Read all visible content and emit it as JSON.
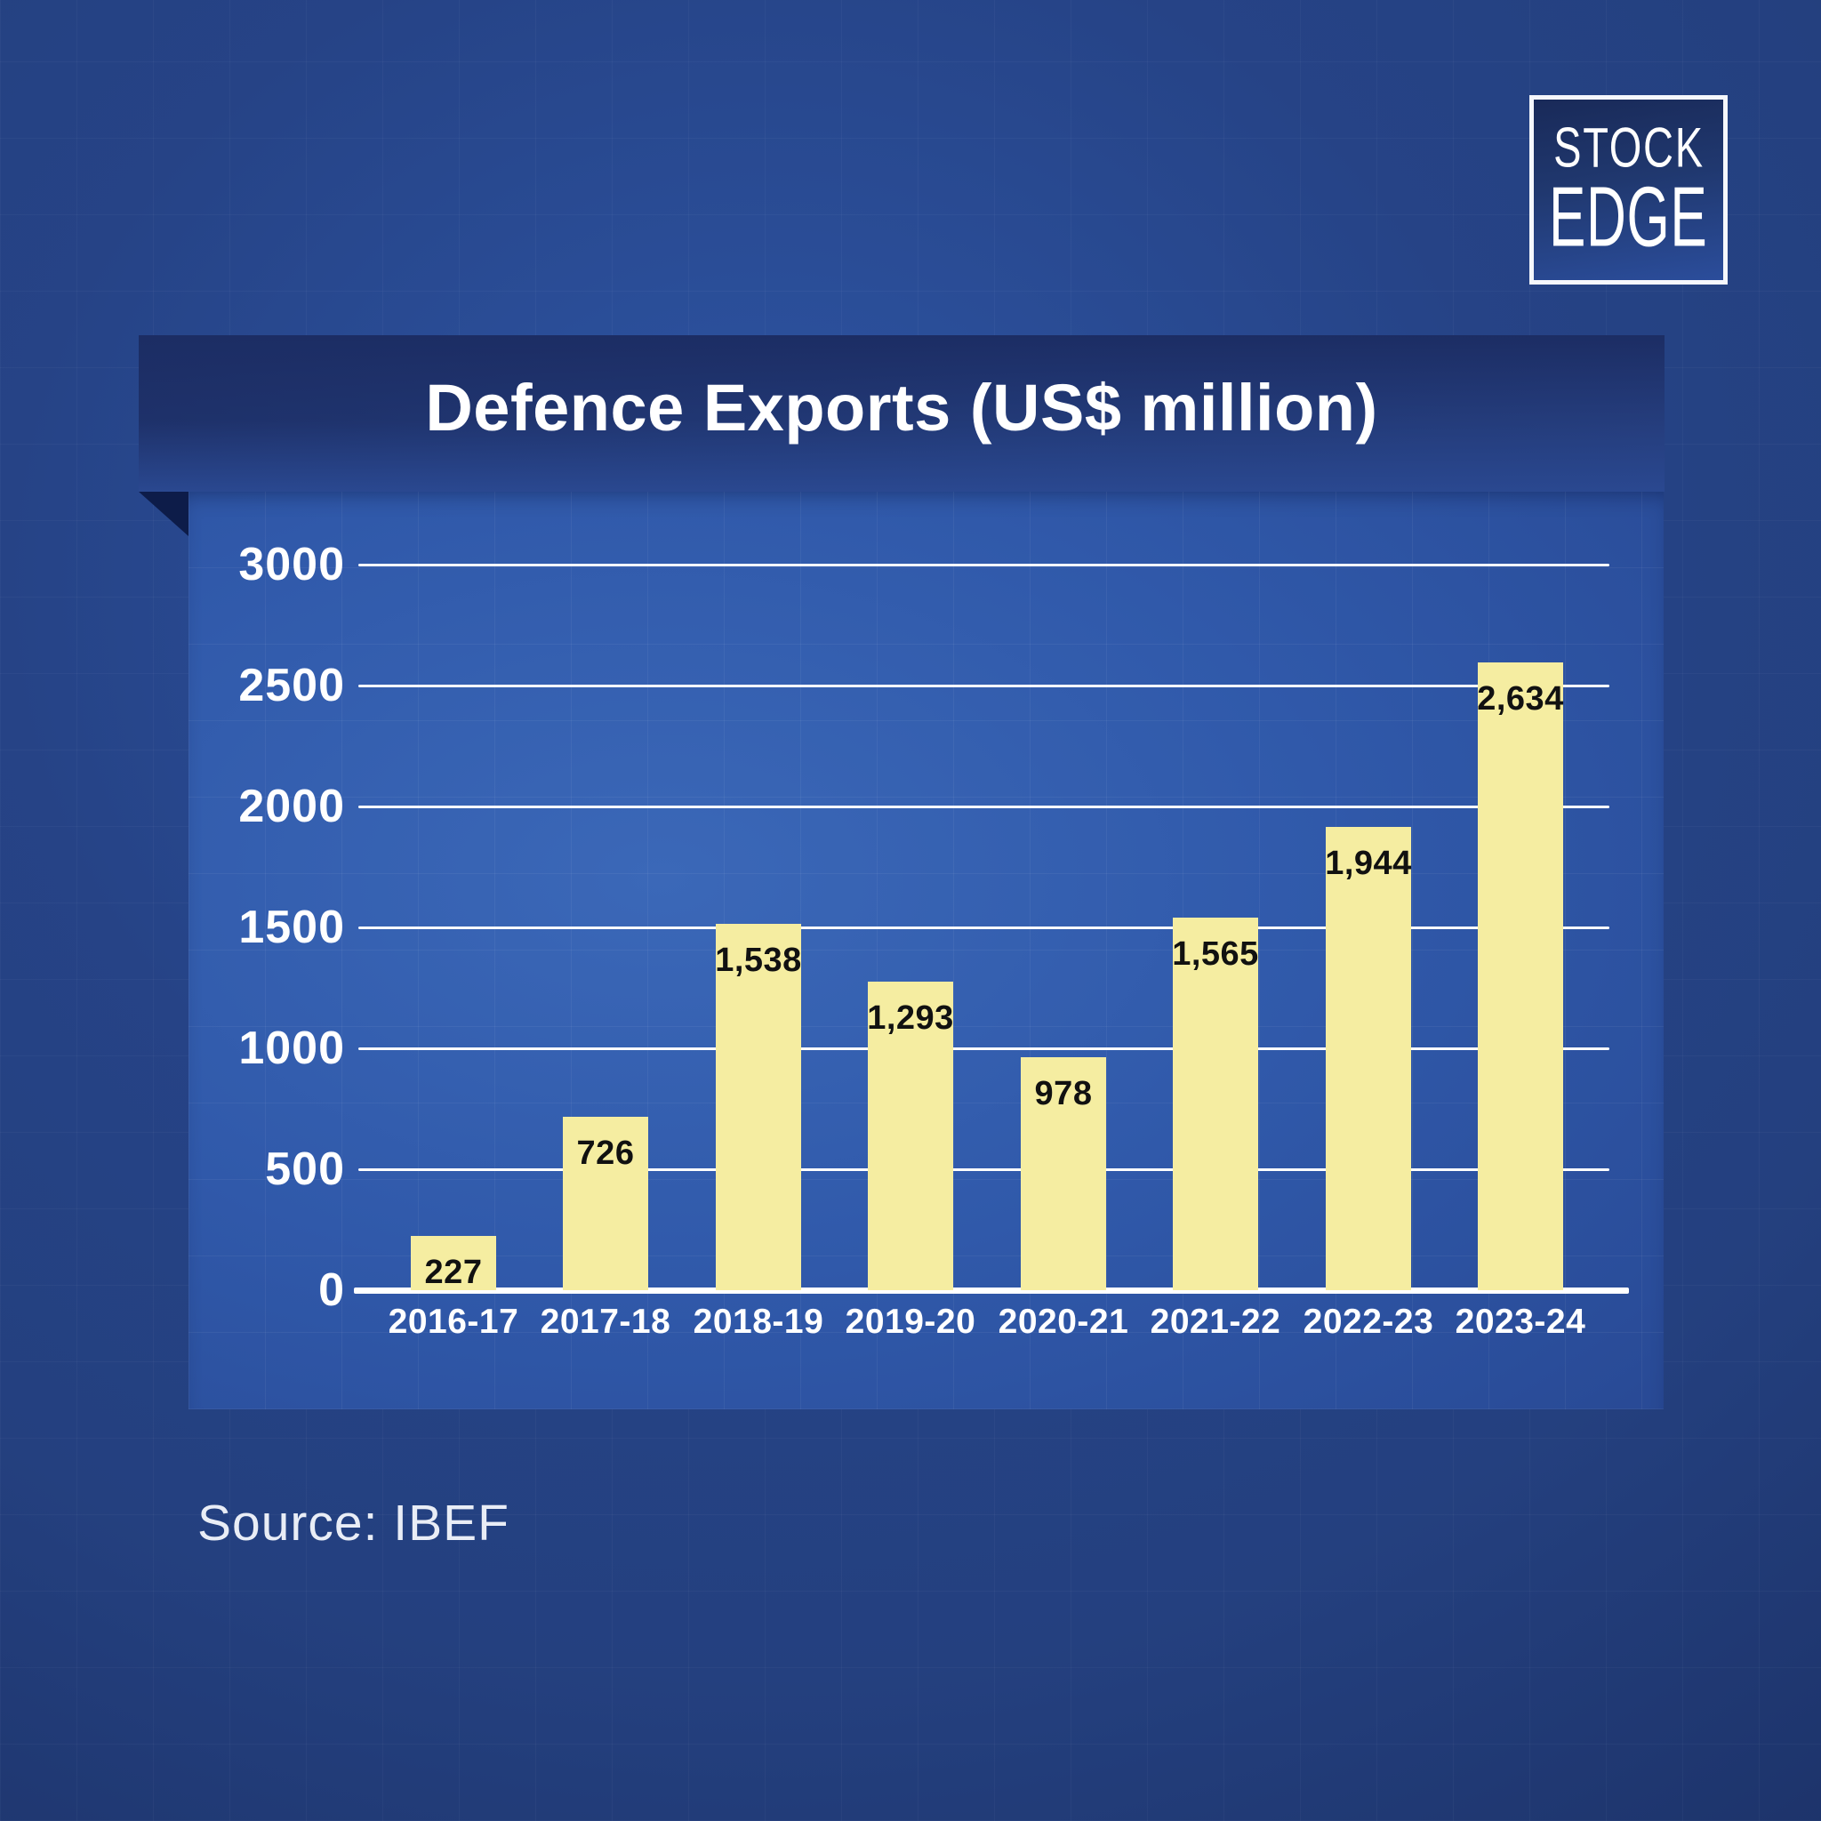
{
  "logo": {
    "line1": "STOCK",
    "line2": "EDGE"
  },
  "header": {
    "title": "Defence Exports (US$ million)"
  },
  "footer": {
    "source": "Source: IBEF"
  },
  "colors": {
    "background_outer": "#1b2f67",
    "panel_blue": "#2d55a3",
    "title_band": "#22376f",
    "bar_yellow": "#F5EDA1",
    "grid_line": "#FFFFFF",
    "value_label": "#111111",
    "fold_dark": "#0d1c49"
  },
  "chart_data": {
    "type": "bar",
    "title": "Defence Exports (US$ million)",
    "categories": [
      "2016-17",
      "2017-18",
      "2018-19",
      "2019-20",
      "2020-21",
      "2021-22",
      "2022-23",
      "2023-24"
    ],
    "values": [
      227,
      726,
      1538,
      1293,
      978,
      1565,
      1944,
      2634
    ],
    "value_labels": [
      "227",
      "726",
      "1,538",
      "1,293",
      "978",
      "1,565",
      "1,944",
      "2,634"
    ],
    "xlabel": "",
    "ylabel": "",
    "y_ticks": [
      0,
      500,
      1000,
      1500,
      2000,
      2500,
      3000
    ],
    "y_tick_labels": [
      "0",
      "500",
      "1000",
      "1500",
      "2000",
      "2500",
      "3000"
    ],
    "ylim": [
      0,
      3000
    ],
    "grid": true,
    "legend_position": "none",
    "bar_color": "#F5EDA1",
    "source": "IBEF"
  }
}
